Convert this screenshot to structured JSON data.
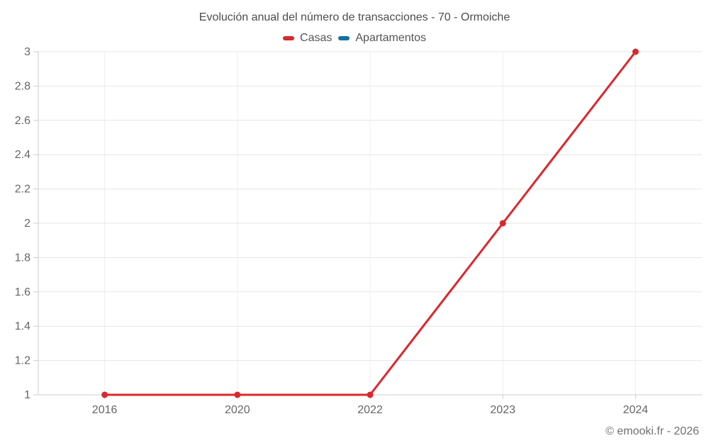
{
  "chart_data": {
    "type": "line",
    "title": "Evolución anual del número de transacciones - 70 - Ormoiche",
    "categories": [
      "2016",
      "2020",
      "2022",
      "2023",
      "2024"
    ],
    "series": [
      {
        "name": "Casas",
        "color": "#d9282e",
        "values": [
          1,
          1,
          1,
          2,
          3
        ]
      },
      {
        "name": "Apartamentos",
        "color": "#1272a2",
        "values": []
      }
    ],
    "xlabel": "",
    "ylabel": "",
    "ylim": [
      1,
      3
    ],
    "ytick_step": 0.2,
    "ytick_labels": [
      "1",
      "1.2",
      "1.4",
      "1.6",
      "1.8",
      "2",
      "2.2",
      "2.4",
      "2.6",
      "2.8",
      "3"
    ],
    "grid": true,
    "legend_position": "top"
  },
  "footer": {
    "credit": "© emooki.fr - 2026"
  }
}
